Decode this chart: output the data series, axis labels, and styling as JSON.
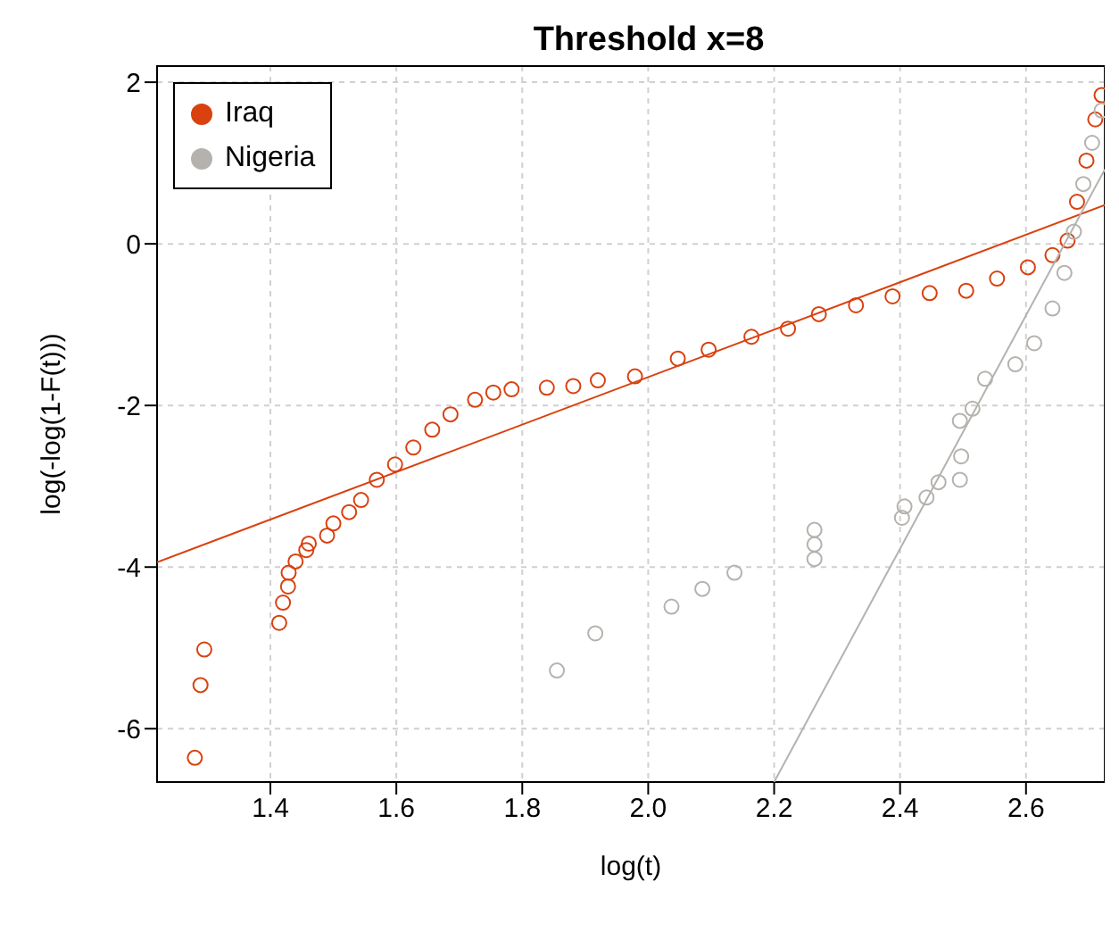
{
  "chart_data": {
    "type": "scatter",
    "title": "Threshold x=8",
    "xlabel": "log(t)",
    "ylabel": "log(-log(1-F(t)))",
    "xlim": [
      1.22,
      2.725
    ],
    "ylim": [
      -6.66,
      2.2
    ],
    "xticks": [
      1.4,
      1.6,
      1.8,
      {
        "value": 2,
        "label": "2.0"
      },
      2.2,
      2.4,
      2.6
    ],
    "yticks": [
      -6,
      -4,
      -2,
      0,
      2
    ],
    "grid": true,
    "legend": "top left",
    "marker": "circle",
    "series": [
      {
        "name": "Iraq",
        "color": "#d9410f",
        "x": [
          1.28,
          1.289,
          1.295,
          1.414,
          1.42,
          1.428,
          1.429,
          1.44,
          1.457,
          1.461,
          1.49,
          1.5,
          1.525,
          1.544,
          1.569,
          1.598,
          1.627,
          1.657,
          1.686,
          1.725,
          1.754,
          1.783,
          1.839,
          1.881,
          1.92,
          1.979,
          2.047,
          2.096,
          2.164,
          2.222,
          2.271,
          2.33,
          2.388,
          2.447,
          2.505,
          2.554,
          2.603,
          2.642,
          2.666,
          2.681,
          2.696,
          2.71,
          2.72
        ],
        "values": [
          -6.36,
          -5.46,
          -5.02,
          -4.69,
          -4.44,
          -4.24,
          -4.07,
          -3.93,
          -3.79,
          -3.71,
          -3.61,
          -3.46,
          -3.32,
          -3.17,
          -2.92,
          -2.73,
          -2.52,
          -2.3,
          -2.11,
          -1.93,
          -1.84,
          -1.8,
          -1.78,
          -1.76,
          -1.69,
          -1.64,
          -1.42,
          -1.31,
          -1.15,
          -1.05,
          -0.87,
          -0.76,
          -0.65,
          -0.61,
          -0.58,
          -0.43,
          -0.29,
          -0.14,
          0.04,
          0.52,
          1.03,
          1.54,
          1.84
        ]
      },
      {
        "name": "Nigeria",
        "color": "#b5b2ae",
        "x": [
          1.855,
          1.916,
          2.037,
          2.086,
          2.137,
          2.264,
          2.264,
          2.264,
          2.403,
          2.407,
          2.442,
          2.461,
          2.495,
          2.497,
          2.495,
          2.515,
          2.535,
          2.583,
          2.613,
          2.642,
          2.661,
          2.676,
          2.691,
          2.705,
          2.72
        ],
        "values": [
          -5.28,
          -4.82,
          -4.49,
          -4.27,
          -4.07,
          -3.9,
          -3.72,
          -3.54,
          -3.39,
          -3.25,
          -3.14,
          -2.95,
          -2.92,
          -2.63,
          -2.19,
          -2.04,
          -1.67,
          -1.49,
          -1.23,
          -0.8,
          -0.36,
          0.15,
          0.74,
          1.25,
          1.65
        ]
      },
      {
        "type": "line",
        "color": "#d9410f",
        "marker": "none",
        "line_style": "solid",
        "x": [
          1.22,
          2.725
        ],
        "values": [
          -3.94,
          0.48
        ]
      },
      {
        "type": "line",
        "color": "#b5b2ae",
        "marker": "none",
        "line_style": "solid",
        "x": [
          2.2,
          2.725
        ],
        "values": [
          -6.66,
          0.92
        ]
      }
    ]
  }
}
